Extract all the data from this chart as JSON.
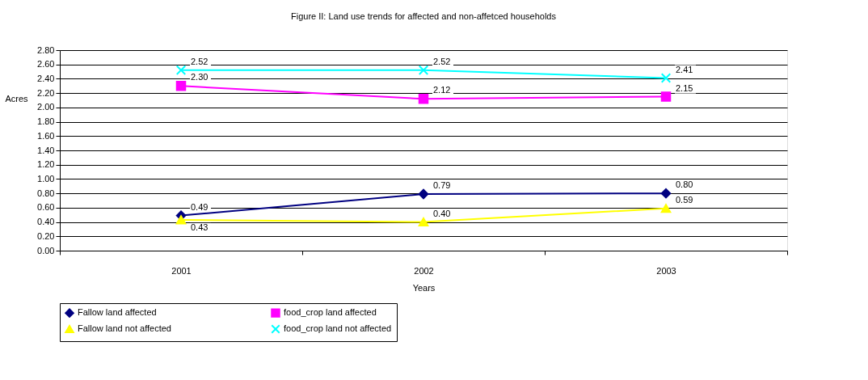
{
  "chart_data": {
    "type": "line",
    "title": "Figure II: Land use trends for affected and non-affetced households",
    "xlabel": "Years",
    "ylabel": "Acres",
    "categories": [
      "2001",
      "2002",
      "2003"
    ],
    "series": [
      {
        "name": "Fallow land affected",
        "color": "#000080",
        "marker": "diamond",
        "values": [
          0.49,
          0.79,
          0.8
        ],
        "value_labels": [
          "0.49",
          "0.79",
          "0.80"
        ]
      },
      {
        "name": "food_crop land affected",
        "color": "#ff00ff",
        "marker": "square",
        "values": [
          2.3,
          2.12,
          2.15
        ],
        "value_labels": [
          "2.30",
          "2.12",
          "2.15"
        ]
      },
      {
        "name": "Fallow land not affected",
        "color": "#ffff00",
        "marker": "triangle",
        "values": [
          0.43,
          0.4,
          0.59
        ],
        "value_labels": [
          "0.43",
          "0.40",
          "0.59"
        ]
      },
      {
        "name": "food_crop land not affected",
        "color": "#00ffff",
        "marker": "cross",
        "values": [
          2.52,
          2.52,
          2.41
        ],
        "value_labels": [
          "2.52",
          "2.52",
          "2.41"
        ]
      }
    ],
    "ylim": [
      0,
      2.8
    ],
    "yticks": [
      {
        "value": 0,
        "label": "0.00"
      },
      {
        "value": 0.2,
        "label": "0.20"
      },
      {
        "value": 0.4,
        "label": "0.40"
      },
      {
        "value": 0.6,
        "label": "0.60"
      },
      {
        "value": 0.8,
        "label": "0.80"
      },
      {
        "value": 1.0,
        "label": "1.00"
      },
      {
        "value": 1.2,
        "label": "1.20"
      },
      {
        "value": 1.4,
        "label": "1.40"
      },
      {
        "value": 1.6,
        "label": "1.60"
      },
      {
        "value": 1.8,
        "label": "1.80"
      },
      {
        "value": 2.0,
        "label": "2.00"
      },
      {
        "value": 2.2,
        "label": "2.20"
      },
      {
        "value": 2.4,
        "label": "2.40"
      },
      {
        "value": 2.6,
        "label": "2.60"
      },
      {
        "value": 2.8,
        "label": "2.80"
      }
    ],
    "grid": "y",
    "legend": "bottom",
    "line_style": "solid"
  }
}
